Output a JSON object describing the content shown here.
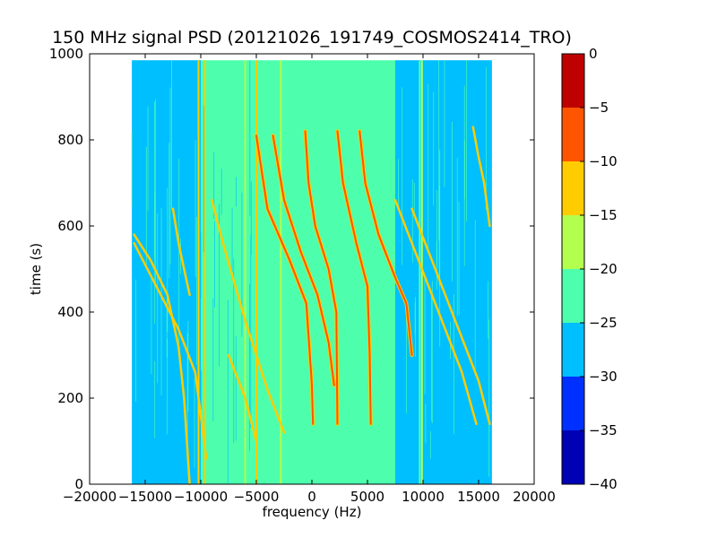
{
  "chart_data": {
    "type": "heatmap",
    "title": "150 MHz signal PSD (20121026_191749_COSMOS2414_TRO)",
    "xlabel": "frequency (Hz)",
    "ylabel": "time (s)",
    "xlim": [
      -20000,
      20000
    ],
    "ylim": [
      0,
      1000
    ],
    "x_ticks": [
      "−20000",
      "−15000",
      "−10000",
      "−5000",
      "0",
      "5000",
      "10000",
      "15000",
      "20000"
    ],
    "x_tick_values": [
      -20000,
      -15000,
      -10000,
      -5000,
      0,
      5000,
      10000,
      15000,
      20000
    ],
    "y_ticks": [
      "0",
      "200",
      "400",
      "600",
      "800",
      "1000"
    ],
    "y_tick_values": [
      0,
      200,
      400,
      600,
      800,
      1000
    ],
    "data_extent": {
      "freq": [
        -16200,
        16200
      ],
      "time": [
        0,
        985
      ]
    },
    "colorbar": {
      "levels": [
        -40,
        -35,
        -30,
        -25,
        -20,
        -15,
        -10,
        -5,
        0
      ],
      "tick_labels": [
        "−40",
        "−35",
        "−30",
        "−25",
        "−20",
        "−15",
        "−10",
        "−5",
        "0"
      ],
      "colors": [
        "#0000b4",
        "#0030ff",
        "#00bfff",
        "#4dffad",
        "#b3ff4d",
        "#ffcc00",
        "#ff5500",
        "#bf0000"
      ]
    },
    "background_regions": [
      {
        "freq": [
          -16200,
          -10000
        ],
        "level": -27.5,
        "label": "-30 to -25"
      },
      {
        "freq": [
          -10000,
          -5000
        ],
        "level": -22.5,
        "label": "-25 to -20 mixed"
      },
      {
        "freq": [
          -5000,
          7500
        ],
        "level": -22.5,
        "label": "-25 to -20"
      },
      {
        "freq": [
          7500,
          10000
        ],
        "level": -27.5,
        "label": "-30 to -25 mixed"
      },
      {
        "freq": [
          10000,
          16200
        ],
        "level": -27.5,
        "label": "-30 to -25"
      }
    ],
    "traces": [
      {
        "name": "",
        "level": -7.5,
        "points": [
          [
            -5000,
            810
          ],
          [
            -4000,
            640
          ],
          [
            -2000,
            520
          ],
          [
            -500,
            420
          ],
          [
            0,
            230
          ],
          [
            100,
            140
          ]
        ]
      },
      {
        "name": "",
        "level": -7.5,
        "points": [
          [
            -3500,
            810
          ],
          [
            -2500,
            660
          ],
          [
            -1000,
            540
          ],
          [
            500,
            440
          ],
          [
            1500,
            330
          ],
          [
            2000,
            230
          ]
        ]
      },
      {
        "name": "",
        "level": -7.5,
        "points": [
          [
            -600,
            820
          ],
          [
            -300,
            700
          ],
          [
            300,
            600
          ],
          [
            1500,
            500
          ],
          [
            2200,
            400
          ],
          [
            2300,
            140
          ]
        ]
      },
      {
        "name": "",
        "level": -7.5,
        "points": [
          [
            2300,
            820
          ],
          [
            2800,
            700
          ],
          [
            4000,
            560
          ],
          [
            5000,
            460
          ],
          [
            5200,
            300
          ],
          [
            5300,
            140
          ]
        ]
      },
      {
        "name": "",
        "level": -7.5,
        "points": [
          [
            4300,
            820
          ],
          [
            4800,
            700
          ],
          [
            6000,
            580
          ],
          [
            7500,
            480
          ],
          [
            8500,
            420
          ],
          [
            9000,
            300
          ]
        ]
      },
      {
        "name": "",
        "level": -12.5,
        "points": [
          [
            -16000,
            580
          ],
          [
            -14500,
            520
          ],
          [
            -13000,
            440
          ],
          [
            -12000,
            320
          ],
          [
            -11500,
            200
          ],
          [
            -11000,
            0
          ]
        ]
      },
      {
        "name": "",
        "level": -12.5,
        "points": [
          [
            -16000,
            560
          ],
          [
            -14000,
            460
          ],
          [
            -12000,
            360
          ],
          [
            -10500,
            260
          ],
          [
            -9500,
            60
          ]
        ]
      },
      {
        "name": "",
        "level": -12.5,
        "points": [
          [
            -9000,
            660
          ],
          [
            -8000,
            560
          ],
          [
            -7000,
            470
          ],
          [
            -6000,
            380
          ],
          [
            -5000,
            300
          ],
          [
            -4000,
            220
          ],
          [
            -2500,
            120
          ]
        ]
      },
      {
        "name": "",
        "level": -12.5,
        "points": [
          [
            7500,
            660
          ],
          [
            9000,
            560
          ],
          [
            10500,
            460
          ],
          [
            12000,
            360
          ],
          [
            13500,
            260
          ],
          [
            14800,
            140
          ]
        ]
      },
      {
        "name": "",
        "level": -12.5,
        "points": [
          [
            9000,
            640
          ],
          [
            10500,
            540
          ],
          [
            12000,
            440
          ],
          [
            13500,
            340
          ],
          [
            15000,
            240
          ],
          [
            16000,
            140
          ]
        ]
      },
      {
        "name": "",
        "level": -12.5,
        "points": [
          [
            14500,
            830
          ],
          [
            15000,
            760
          ],
          [
            15500,
            700
          ],
          [
            16000,
            600
          ]
        ]
      },
      {
        "name": "",
        "level": -12.5,
        "points": [
          [
            -12500,
            640
          ],
          [
            -12000,
            560
          ],
          [
            -11000,
            440
          ]
        ]
      },
      {
        "name": "",
        "level": -12.5,
        "points": [
          [
            -7500,
            300
          ],
          [
            -6000,
            200
          ],
          [
            -5000,
            100
          ]
        ]
      }
    ],
    "vertical_lines": [
      {
        "freq": -10800,
        "level": -27.5
      },
      {
        "freq": -10200,
        "level": -12.5
      },
      {
        "freq": -9600,
        "level": -12.5
      },
      {
        "freq": -6000,
        "level": -17.5
      },
      {
        "freq": -5000,
        "level": -12.5
      },
      {
        "freq": -2800,
        "level": -17.5
      },
      {
        "freq": 9700,
        "level": -22.5
      },
      {
        "freq": 9900,
        "level": -17.5
      }
    ]
  }
}
